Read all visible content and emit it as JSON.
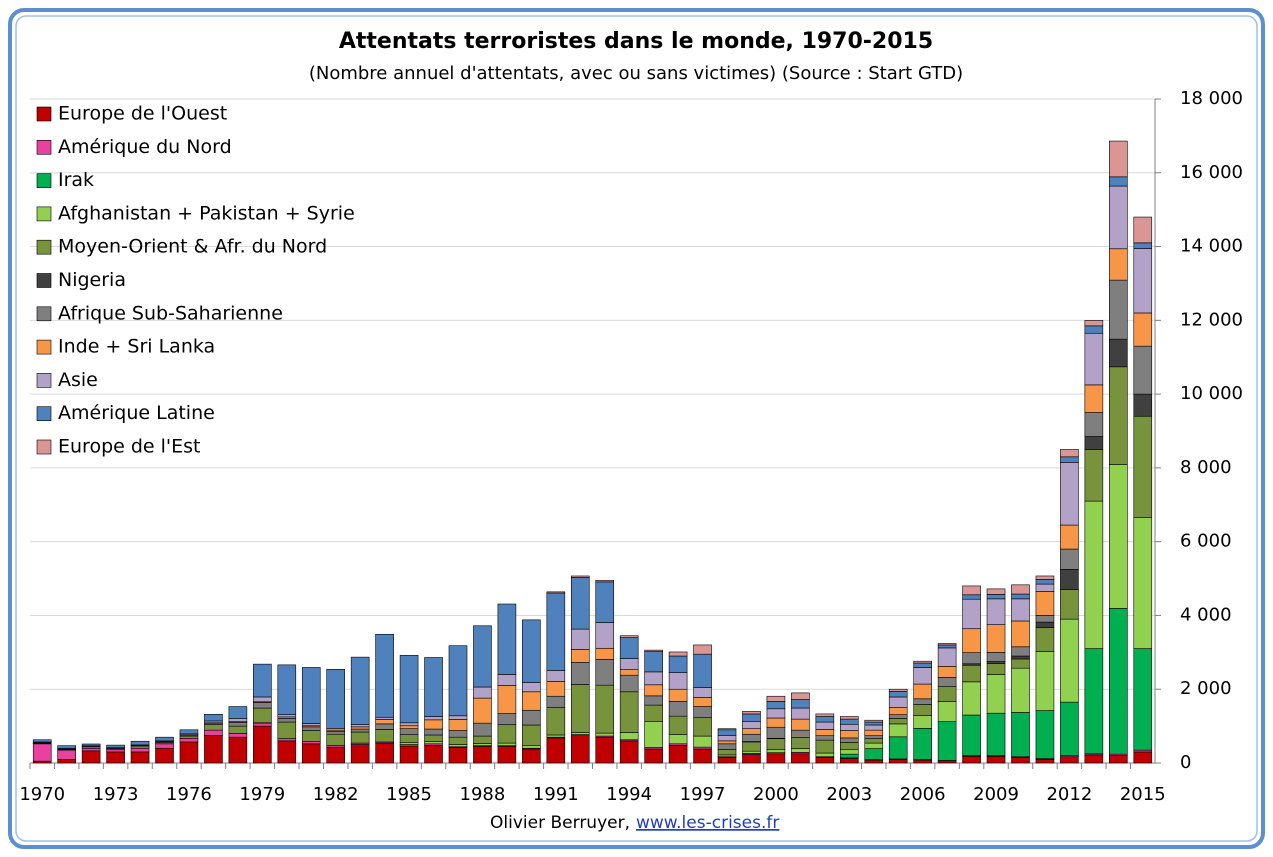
{
  "chart_data": {
    "type": "stacked_bar",
    "title": "Attentats terroristes dans le monde, 1970-2015",
    "subtitle": "(Nombre annuel d'attentats, avec ou sans victimes) (Source : Start GTD)",
    "credit": "Olivier Berruyer,",
    "link": "www.les-crises.fr",
    "categories": [
      "1970",
      null,
      null,
      "1973",
      null,
      null,
      "1976",
      null,
      null,
      "1979",
      null,
      null,
      "1982",
      null,
      null,
      "1985",
      null,
      null,
      "1988",
      null,
      null,
      "1991",
      null,
      null,
      "1994",
      null,
      null,
      "1997",
      null,
      null,
      "2000",
      null,
      null,
      "2003",
      null,
      null,
      "2006",
      null,
      null,
      "2009",
      null,
      null,
      "2012",
      null,
      null,
      "2015"
    ],
    "ylim": [
      0,
      18000
    ],
    "yticks": [
      0,
      {
        "value": 2000,
        "label": "2 000"
      },
      {
        "value": 4000,
        "label": "4 000"
      },
      {
        "value": 6000,
        "label": "6 000"
      },
      {
        "value": 8000,
        "label": "8 000"
      },
      {
        "value": 10000,
        "label": "10 000"
      },
      {
        "value": 12000,
        "label": "12 000"
      },
      {
        "value": 14000,
        "label": "14 000"
      },
      {
        "value": 16000,
        "label": "16 000"
      },
      {
        "value": 18000,
        "label": "18 000"
      }
    ],
    "grid": true,
    "legend": "upper left",
    "series": [
      {
        "name": "Europe de l'Ouest",
        "color": "#c00000",
        "values": [
          50,
          100,
          330,
          300,
          300,
          400,
          570,
          750,
          700,
          1000,
          600,
          520,
          430,
          500,
          540,
          460,
          480,
          420,
          450,
          450,
          380,
          680,
          740,
          700,
          600,
          380,
          480,
          380,
          150,
          230,
          250,
          250,
          150,
          120,
          80,
          100,
          80,
          60,
          180,
          180,
          150,
          100,
          170,
          220,
          200,
          300
        ]
      },
      {
        "name": "Amérique du Nord",
        "color": "#e8419e",
        "values": [
          470,
          250,
          70,
          60,
          100,
          120,
          100,
          140,
          100,
          80,
          60,
          60,
          50,
          40,
          30,
          40,
          40,
          20,
          20,
          20,
          20,
          20,
          30,
          30,
          30,
          40,
          40,
          50,
          20,
          30,
          30,
          40,
          20,
          20,
          10,
          10,
          10,
          10,
          20,
          20,
          20,
          20,
          30,
          30,
          40,
          50
        ]
      },
      {
        "name": "Irak",
        "color": "#00b050",
        "values": [
          0,
          0,
          0,
          0,
          0,
          0,
          0,
          0,
          0,
          10,
          0,
          0,
          0,
          0,
          0,
          0,
          0,
          0,
          0,
          0,
          0,
          0,
          0,
          0,
          0,
          0,
          0,
          0,
          0,
          0,
          0,
          0,
          0,
          100,
          300,
          600,
          850,
          1050,
          1100,
          1150,
          1200,
          1300,
          1450,
          2850,
          3950,
          2750
        ]
      },
      {
        "name": "Afghanistan + Pakistan + Syrie",
        "color": "#92d050",
        "values": [
          0,
          0,
          0,
          0,
          0,
          0,
          0,
          0,
          0,
          0,
          0,
          0,
          0,
          0,
          0,
          50,
          60,
          60,
          60,
          70,
          80,
          60,
          60,
          80,
          200,
          700,
          250,
          300,
          50,
          60,
          80,
          100,
          100,
          120,
          150,
          350,
          350,
          550,
          900,
          1050,
          1200,
          1600,
          2250,
          4000,
          3900,
          3550
        ]
      },
      {
        "name": "Moyen-Orient & Afr. du Nord",
        "color": "#77933c",
        "values": [
          20,
          20,
          40,
          30,
          60,
          40,
          60,
          150,
          200,
          400,
          450,
          300,
          300,
          300,
          340,
          220,
          180,
          200,
          200,
          500,
          550,
          750,
          1300,
          1300,
          1100,
          450,
          500,
          500,
          150,
          250,
          300,
          300,
          350,
          200,
          120,
          150,
          300,
          400,
          450,
          300,
          250,
          650,
          800,
          1400,
          2650,
          2750
        ]
      },
      {
        "name": "Nigeria",
        "color": "#404040",
        "values": [
          0,
          0,
          0,
          0,
          0,
          0,
          0,
          0,
          0,
          0,
          0,
          0,
          0,
          0,
          0,
          0,
          0,
          0,
          0,
          0,
          0,
          0,
          0,
          0,
          0,
          0,
          0,
          0,
          0,
          10,
          10,
          0,
          0,
          0,
          0,
          0,
          0,
          0,
          40,
          50,
          80,
          150,
          550,
          350,
          750,
          600
        ]
      },
      {
        "name": "Afrique Sub-Saharienne",
        "color": "#7f7f7f",
        "values": [
          5,
          5,
          5,
          5,
          10,
          20,
          30,
          40,
          100,
          150,
          100,
          100,
          80,
          80,
          150,
          160,
          160,
          180,
          350,
          300,
          400,
          300,
          600,
          700,
          450,
          250,
          400,
          300,
          150,
          200,
          300,
          200,
          120,
          120,
          80,
          100,
          150,
          250,
          300,
          250,
          250,
          180,
          550,
          650,
          1600,
          1300
        ]
      },
      {
        "name": "Inde + Sri Lanka",
        "color": "#f79646",
        "values": [
          5,
          5,
          0,
          0,
          0,
          0,
          0,
          10,
          20,
          20,
          40,
          30,
          30,
          60,
          120,
          80,
          250,
          300,
          680,
          760,
          500,
          400,
          350,
          300,
          150,
          300,
          330,
          250,
          80,
          150,
          250,
          300,
          170,
          200,
          150,
          200,
          400,
          300,
          650,
          750,
          700,
          650,
          650,
          750,
          850,
          900
        ]
      },
      {
        "name": "Asie",
        "color": "#b3a2c7",
        "values": [
          20,
          20,
          20,
          20,
          20,
          20,
          30,
          50,
          90,
          130,
          60,
          60,
          50,
          60,
          60,
          80,
          90,
          100,
          300,
          300,
          250,
          300,
          550,
          700,
          300,
          350,
          450,
          270,
          150,
          200,
          250,
          300,
          200,
          170,
          140,
          280,
          450,
          500,
          800,
          700,
          600,
          200,
          1700,
          1400,
          1700,
          1750
        ]
      },
      {
        "name": "Amérique Latine",
        "color": "#4f81bd",
        "values": [
          60,
          70,
          50,
          70,
          100,
          100,
          110,
          180,
          320,
          890,
          1350,
          1520,
          1600,
          1830,
          2250,
          1830,
          1600,
          1900,
          1660,
          1910,
          1700,
          2100,
          1400,
          1100,
          570,
          550,
          450,
          900,
          150,
          200,
          200,
          230,
          150,
          140,
          80,
          150,
          120,
          80,
          120,
          120,
          130,
          130,
          150,
          200,
          250,
          150
        ]
      },
      {
        "name": "Europe de l'Est",
        "color": "#d99694",
        "values": [
          0,
          0,
          0,
          0,
          0,
          0,
          0,
          0,
          0,
          0,
          0,
          0,
          0,
          0,
          0,
          0,
          0,
          0,
          0,
          0,
          0,
          30,
          40,
          40,
          50,
          40,
          110,
          250,
          30,
          70,
          140,
          180,
          70,
          70,
          50,
          60,
          50,
          40,
          240,
          150,
          250,
          90,
          200,
          150,
          970,
          700
        ]
      }
    ]
  }
}
